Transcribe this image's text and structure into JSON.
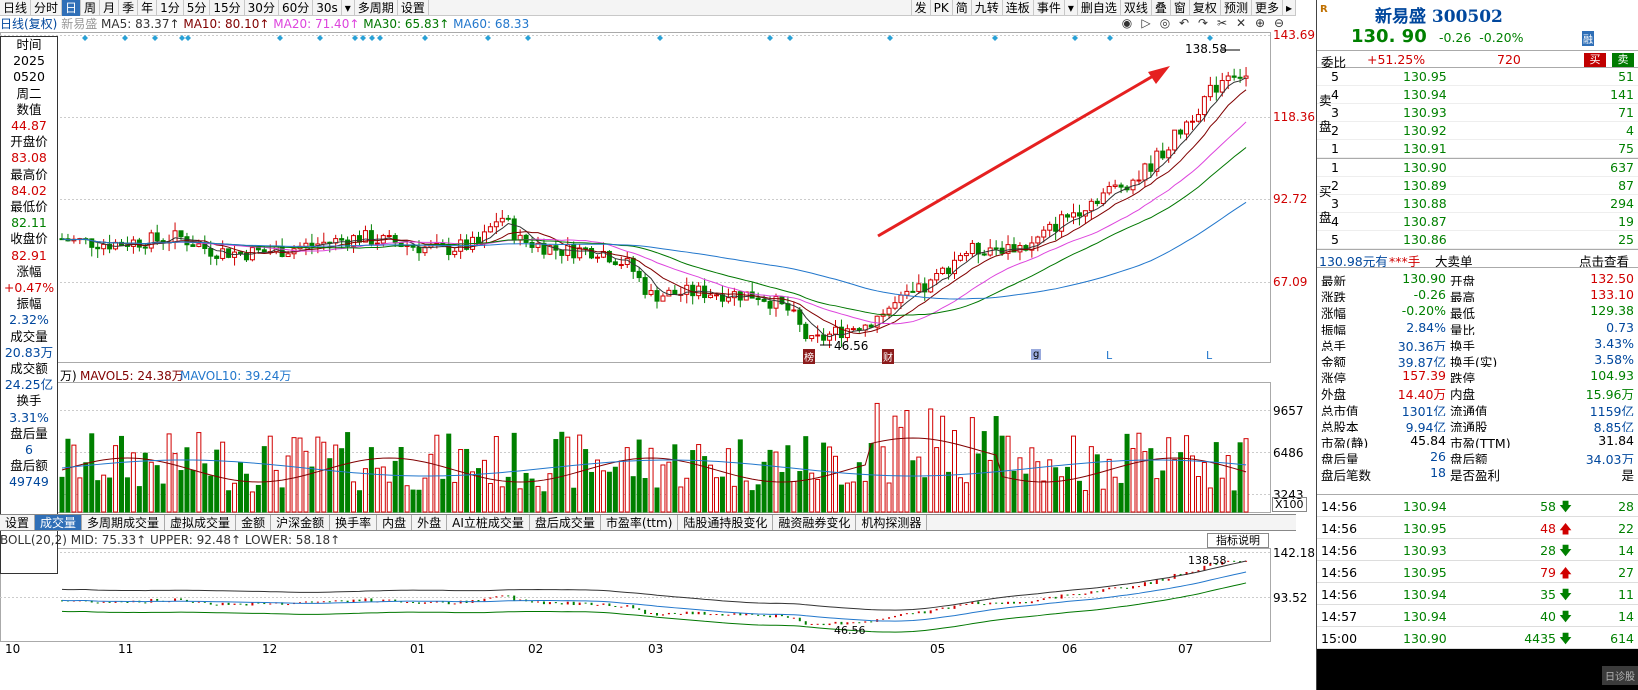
{
  "toolbar": {
    "items_left": [
      "日线",
      "分时",
      "日",
      "周",
      "月",
      "季",
      "年",
      "1分",
      "5分",
      "15分",
      "30分",
      "60分",
      "30s",
      "▾",
      "多周期",
      "设置"
    ],
    "items_right": [
      "发",
      "PK",
      "简",
      "九转",
      "连板",
      "事件",
      "▾",
      "删自选",
      "双线",
      "叠",
      "窗",
      "复权",
      "预测",
      "更多",
      "▸"
    ]
  },
  "ma_bar": {
    "period": "日线(复权)",
    "stock": "新易盛",
    "ma5": "MA5: 83.37↑",
    "ma10": "MA10: 80.10↑",
    "ma20": "MA20: 71.40↑",
    "ma30": "MA30: 65.83↑",
    "ma60": "MA60: 68.33"
  },
  "colors": {
    "up": "#d00000",
    "down": "#008000",
    "ma5": "#333333",
    "ma10": "#800000",
    "ma20": "#dd44dd",
    "ma30": "#007700",
    "ma60": "#2277cc",
    "arrow": "#e52020"
  },
  "left_panel": [
    {
      "label": "时间",
      "value": "2025"
    },
    {
      "label": "",
      "value": "0520"
    },
    {
      "label": "",
      "value": "周二"
    },
    {
      "label": "数值",
      "value": "44.87"
    },
    {
      "label": "开盘价",
      "value": "83.08"
    },
    {
      "label": "最高价",
      "value": "84.02"
    },
    {
      "label": "最低价",
      "value": "82.11"
    },
    {
      "label": "收盘价",
      "value": "82.91"
    },
    {
      "label": "涨幅",
      "value": "+0.47%"
    },
    {
      "label": "振幅",
      "value": "2.32%"
    },
    {
      "label": "成交量",
      "value": "20.83万"
    },
    {
      "label": "成交额",
      "value": "24.25亿"
    },
    {
      "label": "换手",
      "value": "3.31%"
    },
    {
      "label": "盘后量",
      "value": "6"
    },
    {
      "label": "盘后额",
      "value": "49749"
    }
  ],
  "price_axis": [
    "143.69",
    "118.36",
    "92.72",
    "67.09"
  ],
  "annotations": {
    "high": "138.58",
    "low": "46.56",
    "low2": "46.56",
    "boll_high": "138.58"
  },
  "markers": {
    "a": "榜",
    "b": "财",
    "c": "g",
    "d": "L",
    "e": "L"
  },
  "volume": {
    "title_prefix": "万)",
    "mavol5": "MAVOL5: 24.38万",
    "mavol10": "MAVOL10: 39.24万",
    "axis": [
      "9657",
      "6486",
      "3243"
    ],
    "unit": "X100"
  },
  "bottom_tabs": [
    "设置",
    "成交量",
    "多周期成交量",
    "虚拟成交量",
    "金额",
    "沪深金额",
    "换手率",
    "内盘",
    "外盘",
    "AI立桩成交量",
    "盘后成交量",
    "市盈率(ttm)",
    "陆股通持股变化",
    "融资融券变化",
    "机构探测器"
  ],
  "boll": {
    "title": "BOLL(20,2) MID: 75.33↑ UPPER: 92.48↑ LOWER: 58.18↑",
    "help": "指标说明",
    "axis": [
      "142.18",
      "93.52"
    ]
  },
  "x_axis": [
    "10",
    "11",
    "12",
    "01",
    "02",
    "03",
    "04",
    "05",
    "06",
    "07"
  ],
  "chart_data": {
    "type": "candlestick",
    "y_axis_ticks": [
      67.09,
      92.72,
      118.36,
      143.69
    ],
    "x_axis_ticks": [
      "10",
      "11",
      "12",
      "01",
      "02",
      "03",
      "04",
      "05",
      "06",
      "07"
    ],
    "moving_averages": [
      "MA5",
      "MA10",
      "MA20",
      "MA30",
      "MA60"
    ],
    "annotated_high": 138.58,
    "annotated_low": 46.56,
    "volume_axis_ticks": [
      3243,
      6486,
      9657
    ],
    "volume_unit": "X100"
  },
  "quote": {
    "market": "R",
    "name": "新易盛 300502",
    "price": "130. 90",
    "change": "-0.26",
    "pct": "-0.20%",
    "flag": "融",
    "webi_label": "委比",
    "webi": "+51.25%",
    "webi_n": "720",
    "buy_btn": "买",
    "sell_btn": "卖",
    "sell_side": "卖盘",
    "buy_side": "买盘",
    "asks": [
      {
        "lvl": "5",
        "price": "130.95",
        "vol": "51"
      },
      {
        "lvl": "4",
        "price": "130.94",
        "vol": "141"
      },
      {
        "lvl": "3",
        "price": "130.93",
        "vol": "71"
      },
      {
        "lvl": "2",
        "price": "130.92",
        "vol": "4"
      },
      {
        "lvl": "1",
        "price": "130.91",
        "vol": "75"
      }
    ],
    "bids": [
      {
        "lvl": "1",
        "price": "130.90",
        "vol": "637"
      },
      {
        "lvl": "2",
        "price": "130.89",
        "vol": "87"
      },
      {
        "lvl": "3",
        "price": "130.88",
        "vol": "294"
      },
      {
        "lvl": "4",
        "price": "130.87",
        "vol": "19"
      },
      {
        "lvl": "5",
        "price": "130.86",
        "vol": "25"
      }
    ],
    "bigorder": {
      "a": "130.98元有",
      "b": "***手",
      "c": "大卖单",
      "d": "点击查看"
    },
    "stats": [
      {
        "l1": "最新",
        "v1": "130.90",
        "c1": "green",
        "l2": "开盘",
        "v2": "132.50",
        "c2": "red"
      },
      {
        "l1": "涨跌",
        "v1": "-0.26",
        "c1": "green",
        "l2": "最高",
        "v2": "133.10",
        "c2": "red"
      },
      {
        "l1": "涨幅",
        "v1": "-0.20%",
        "c1": "green",
        "l2": "最低",
        "v2": "129.38",
        "c2": "green"
      },
      {
        "l1": "振幅",
        "v1": "2.84%",
        "c1": "blue",
        "l2": "量比",
        "v2": "0.73",
        "c2": "blue"
      },
      {
        "l1": "总手",
        "v1": "30.36万",
        "c1": "blue",
        "l2": "换手",
        "v2": "3.43%",
        "c2": "blue"
      },
      {
        "l1": "金额",
        "v1": "39.87亿",
        "c1": "blue",
        "l2": "换手(实)",
        "v2": "3.58%",
        "c2": "blue"
      },
      {
        "l1": "涨停",
        "v1": "157.39",
        "c1": "red",
        "l2": "跌停",
        "v2": "104.93",
        "c2": "green"
      },
      {
        "l1": "外盘",
        "v1": "14.40万",
        "c1": "red",
        "l2": "内盘",
        "v2": "15.96万",
        "c2": "green"
      },
      {
        "l1": "总市值",
        "v1": "1301亿",
        "c1": "blue",
        "l2": "流通值",
        "v2": "1159亿",
        "c2": "blue"
      },
      {
        "l1": "总股本",
        "v1": "9.94亿",
        "c1": "blue",
        "l2": "流通股",
        "v2": "8.85亿",
        "c2": "blue"
      },
      {
        "l1": "市盈(静)",
        "v1": "45.84",
        "c1": "h",
        "l2": "市盈(TTM)",
        "v2": "31.84",
        "c2": "h"
      },
      {
        "l1": "盘后量",
        "v1": "26",
        "c1": "blue",
        "l2": "盘后额",
        "v2": "34.03万",
        "c2": "blue"
      },
      {
        "l1": "盘后笔数",
        "v1": "18",
        "c1": "blue",
        "l2": "是否盈利",
        "v2": "是",
        "c2": "h"
      }
    ],
    "ticks": [
      {
        "t": "14:56",
        "p": "130.94",
        "v": "58",
        "d": "down",
        "n": "28"
      },
      {
        "t": "14:56",
        "p": "130.95",
        "v": "48",
        "d": "up",
        "n": "22"
      },
      {
        "t": "14:56",
        "p": "130.93",
        "v": "28",
        "d": "down",
        "n": "14"
      },
      {
        "t": "14:56",
        "p": "130.95",
        "v": "79",
        "d": "up",
        "n": "27"
      },
      {
        "t": "14:56",
        "p": "130.94",
        "v": "35",
        "d": "down",
        "n": "11"
      },
      {
        "t": "14:57",
        "p": "130.94",
        "v": "40",
        "d": "down",
        "n": "14"
      },
      {
        "t": "15:00",
        "p": "130.90",
        "v": "4435",
        "d": "down",
        "n": "614"
      }
    ],
    "watermark": "日诊股"
  }
}
